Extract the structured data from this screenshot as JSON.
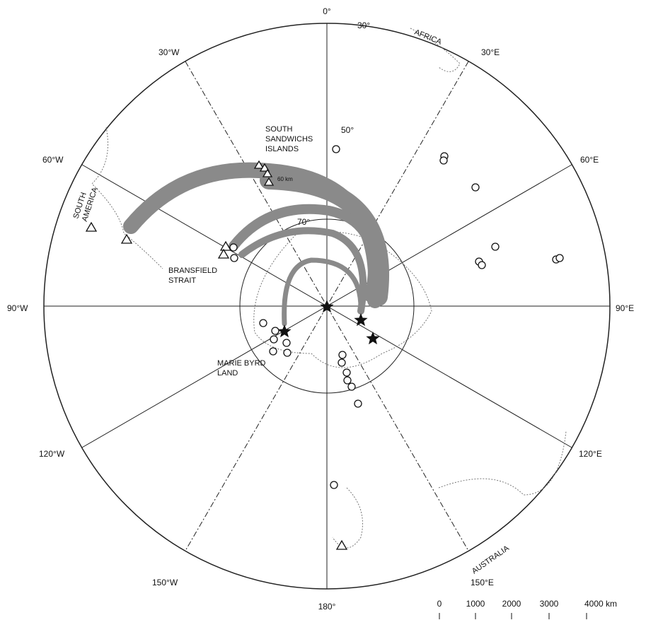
{
  "meridians": {
    "top": "0°",
    "e30": "30°E",
    "e60": "60°E",
    "e90": "90°E",
    "e120": "120°E",
    "e150": "150°E",
    "bottom": "180°",
    "w150": "150°W",
    "w120": "120°W",
    "w90": "90°W",
    "w60": "60°W",
    "w30": "30°W"
  },
  "parallels": {
    "p30": "30°",
    "p50": "50°",
    "p70": "70°"
  },
  "regions": {
    "africa": "AFRICA",
    "south_america": [
      "SOUTH",
      "AMERICA"
    ],
    "australia": "AUSTRALIA",
    "south_sandwich": [
      "SOUTH",
      "SANDWICHS",
      "ISLANDS"
    ],
    "bransfield": [
      "BRANSFIELD",
      "STRAIT"
    ],
    "marie_byrd": [
      "MARIE BYRD",
      "LAND"
    ]
  },
  "arrow_label": "60 km",
  "scale": [
    "0",
    "1000",
    "2000",
    "3000",
    "4000 km"
  ]
}
